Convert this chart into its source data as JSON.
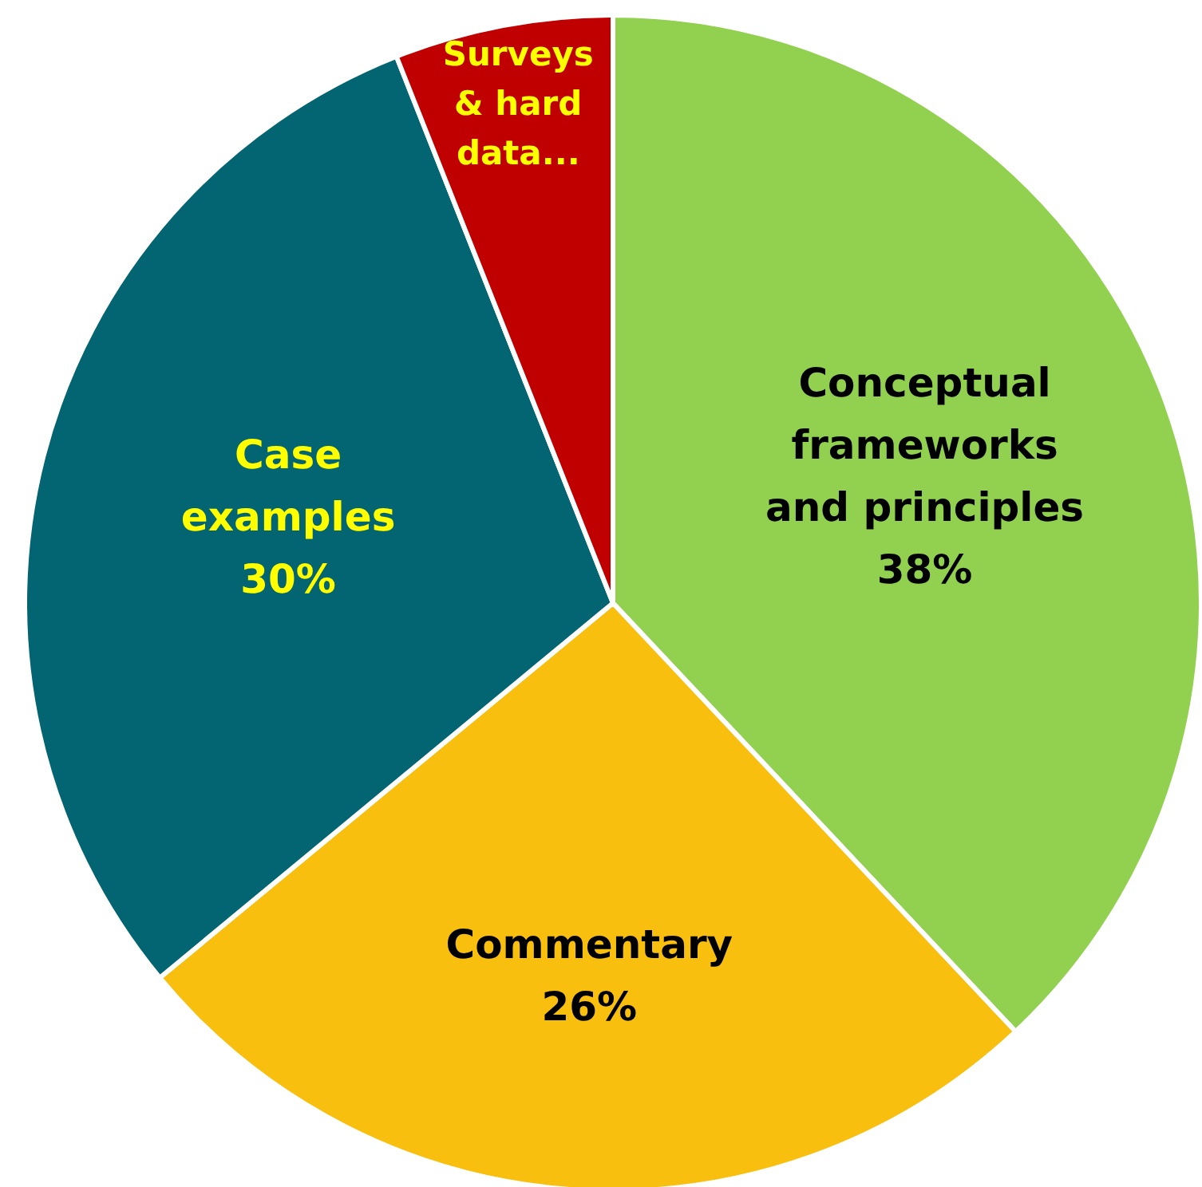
{
  "chart_data": {
    "type": "pie",
    "categories": [
      "Conceptual\nframeworks\nand principles",
      "Commentary",
      "Case\nexamples",
      "Surveys\n& hard\ndata..."
    ],
    "values": [
      38,
      26,
      30,
      6
    ],
    "colors": [
      "#92d050",
      "#f8bf0e",
      "#036472",
      "#c00000"
    ],
    "value_labels": [
      "38%",
      "26%",
      "30%",
      null
    ],
    "legend": false
  }
}
